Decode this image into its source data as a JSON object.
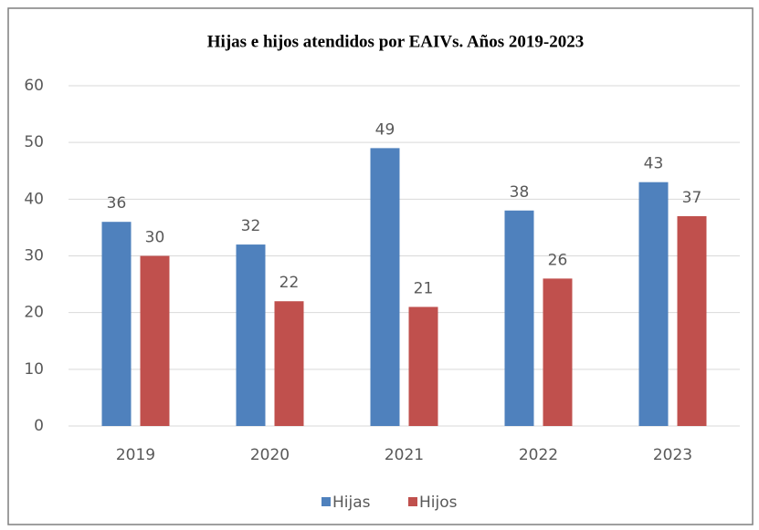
{
  "chart_data": {
    "type": "bar",
    "title": "Hijas e hijos atendidos por EAIVs. Años 2019-2023",
    "categories": [
      "2019",
      "2020",
      "2021",
      "2022",
      "2023"
    ],
    "series": [
      {
        "name": "Hijas",
        "color": "#4f81bd",
        "values": [
          36,
          32,
          49,
          38,
          43
        ]
      },
      {
        "name": "Hijos",
        "color": "#c0504d",
        "values": [
          30,
          22,
          21,
          26,
          37
        ]
      }
    ],
    "ylim": [
      0,
      60
    ],
    "yticks": [
      0,
      10,
      20,
      30,
      40,
      50,
      60
    ],
    "grid": true,
    "legend": "bottom"
  }
}
